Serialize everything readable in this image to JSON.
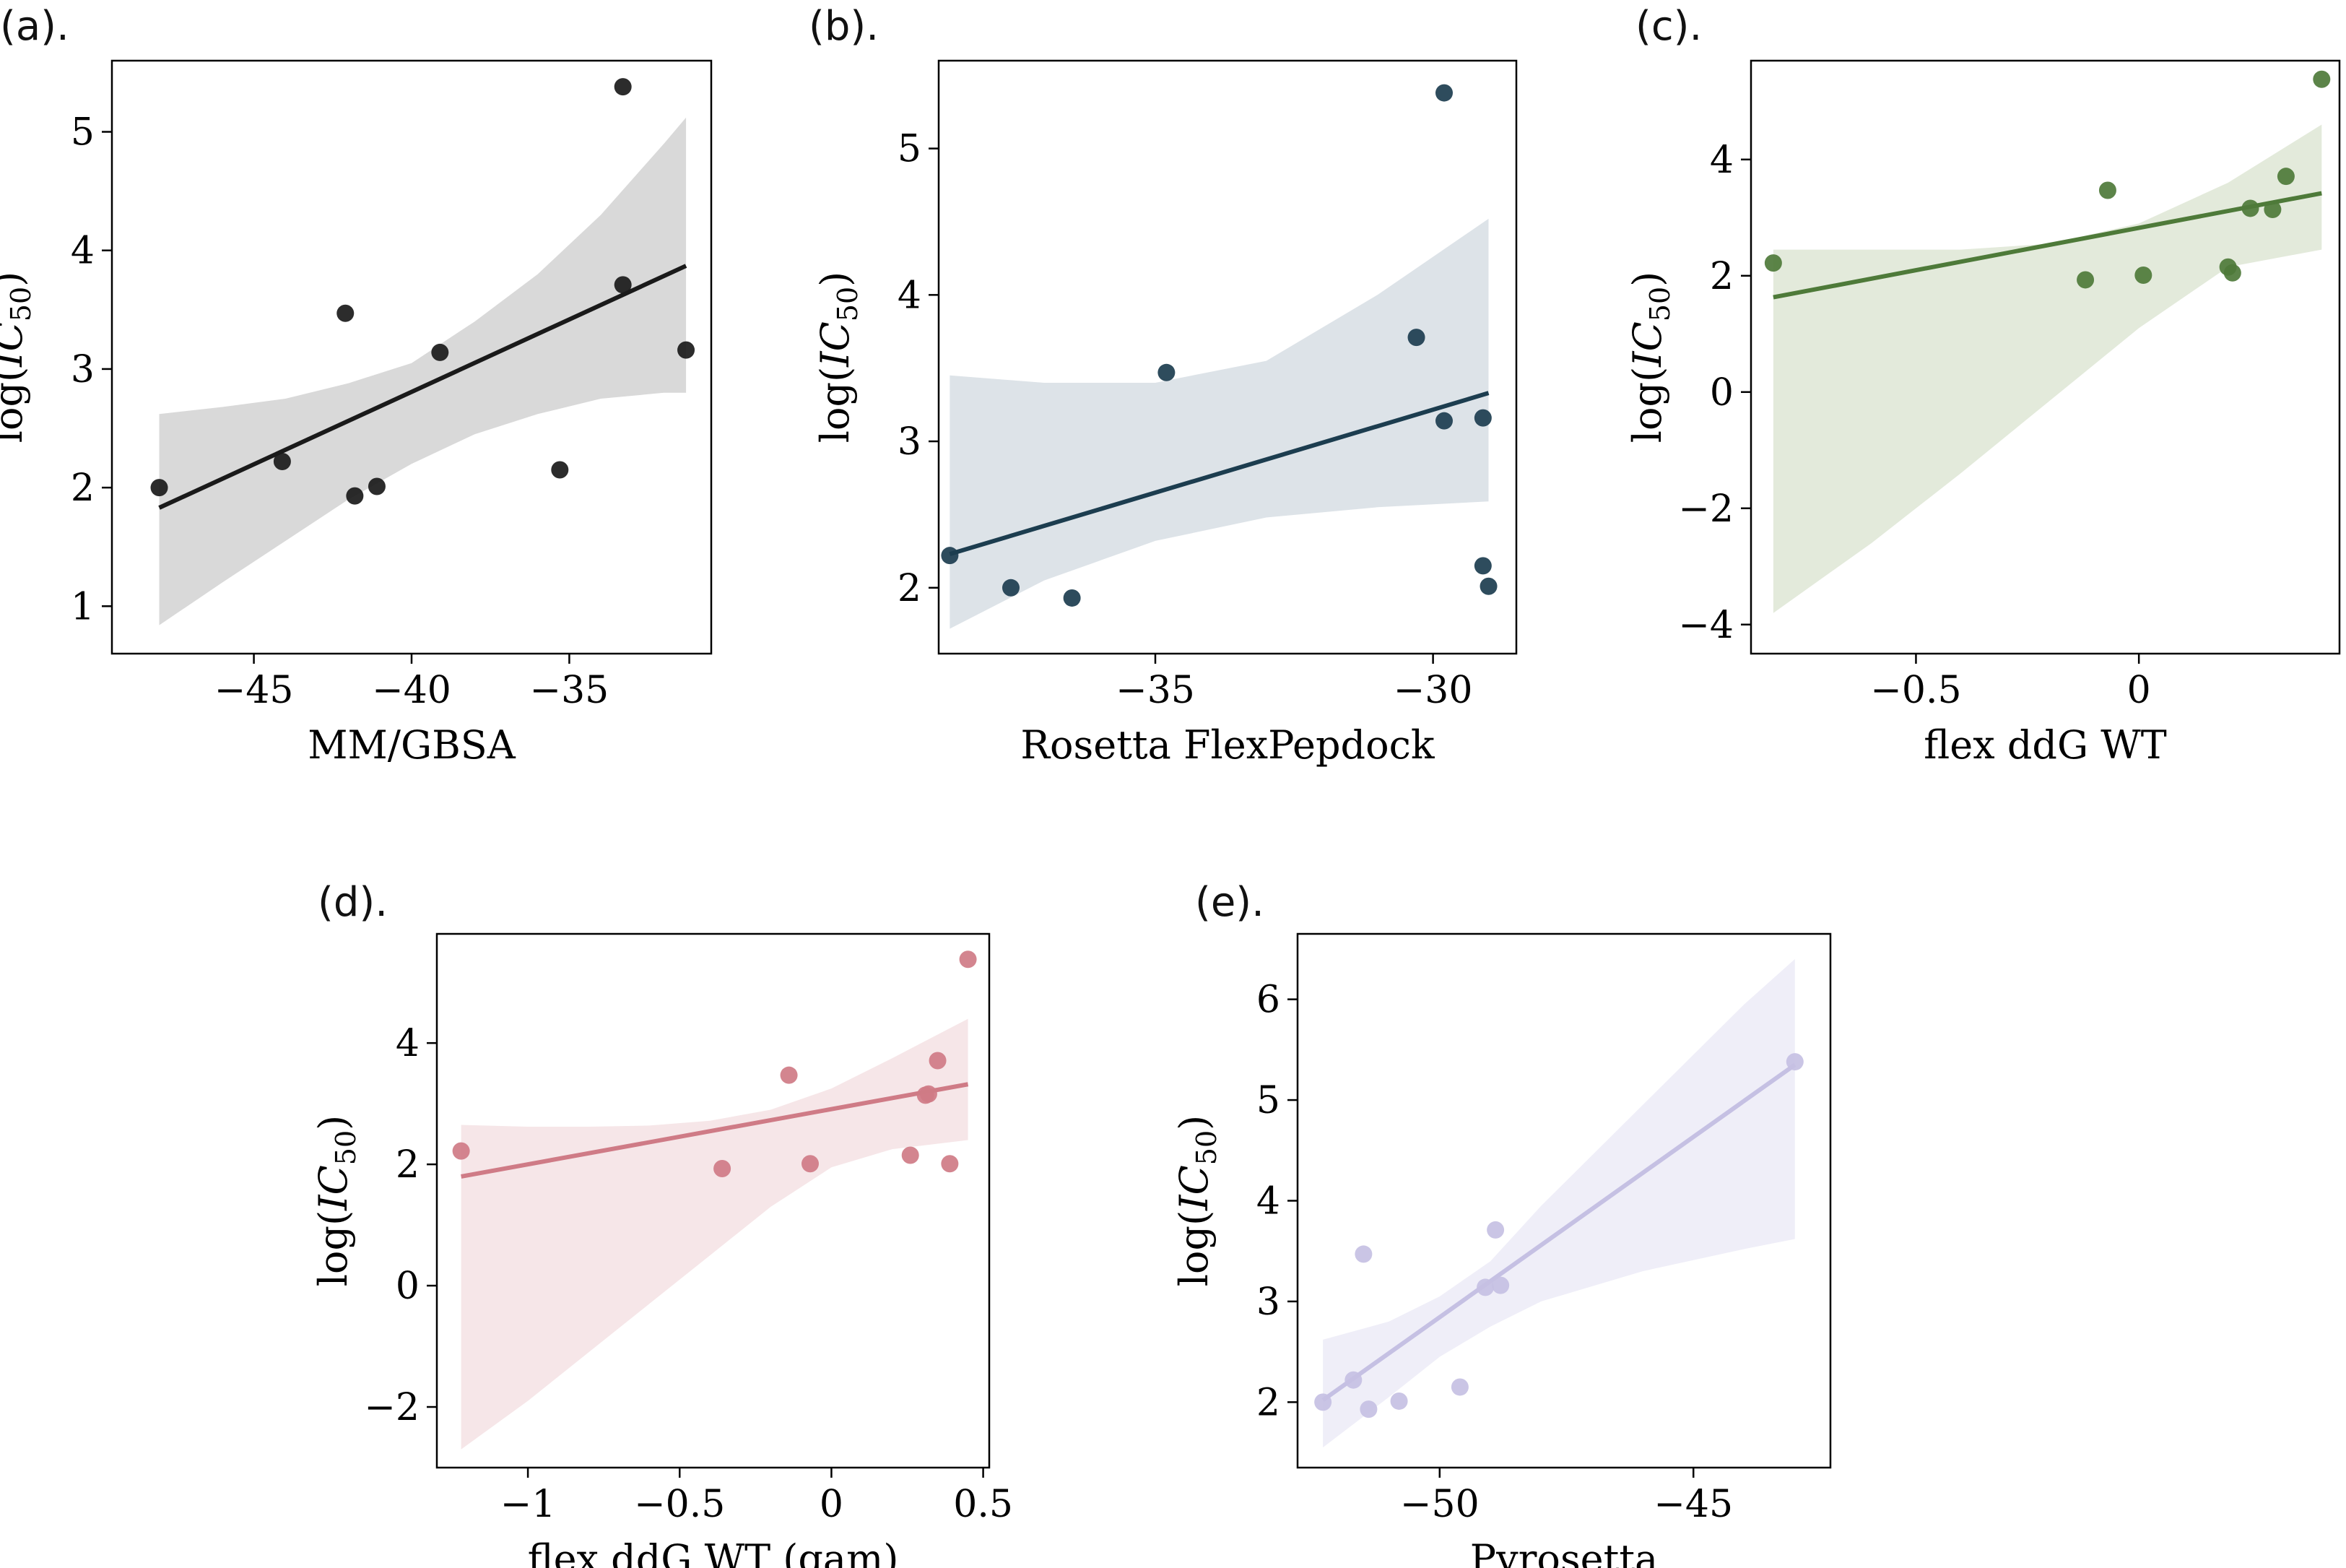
{
  "chart_data": [
    {
      "id": "a",
      "panel_label": "(a).",
      "type": "scatter",
      "xlabel": "MM/GBSA",
      "ylabel": "log(IC50)",
      "xlim": [
        -49.5,
        -30.5
      ],
      "ylim": [
        0.6,
        5.6
      ],
      "xticks": [
        -45,
        -40,
        -35
      ],
      "yticks": [
        1,
        2,
        3,
        4,
        5
      ],
      "color": "#1a1a1a",
      "band_color": "#d9d9d9",
      "x": [
        -48.0,
        -44.1,
        -42.1,
        -41.8,
        -41.1,
        -39.1,
        -35.3,
        -33.3,
        -33.3,
        -31.3
      ],
      "y": [
        2.0,
        2.22,
        3.47,
        1.93,
        2.01,
        3.14,
        2.15,
        5.38,
        3.71,
        3.16
      ],
      "fit": {
        "x": [
          -48.0,
          -31.3
        ],
        "y": [
          1.83,
          3.87
        ]
      },
      "band": {
        "x": [
          -48.0,
          -46.0,
          -44.0,
          -42.0,
          -40.0,
          -38.0,
          -36.0,
          -34.0,
          -32.0,
          -31.3
        ],
        "lower": [
          0.84,
          1.2,
          1.55,
          1.9,
          2.2,
          2.45,
          2.62,
          2.75,
          2.8,
          2.8
        ],
        "upper": [
          2.62,
          2.68,
          2.75,
          2.88,
          3.05,
          3.4,
          3.8,
          4.3,
          4.9,
          5.12
        ]
      }
    },
    {
      "id": "b",
      "panel_label": "(b).",
      "type": "scatter",
      "xlabel": "Rosetta FlexPepdock",
      "ylabel": "log(IC50)",
      "xlim": [
        -38.9,
        -28.5
      ],
      "ylim": [
        1.55,
        5.6
      ],
      "xticks": [
        -35,
        -30
      ],
      "yticks": [
        2,
        3,
        4,
        5
      ],
      "color": "#1c3d4f",
      "band_color": "#dde3e8",
      "x": [
        -38.7,
        -37.6,
        -36.5,
        -34.8,
        -30.3,
        -29.8,
        -29.8,
        -29.1,
        -29.1,
        -29.0
      ],
      "y": [
        2.22,
        2.0,
        1.93,
        3.47,
        3.71,
        5.38,
        3.14,
        3.16,
        2.15,
        2.01
      ],
      "fit": {
        "x": [
          -38.7,
          -29.0
        ],
        "y": [
          2.23,
          3.33
        ]
      },
      "band": {
        "x": [
          -38.7,
          -37.0,
          -35.0,
          -33.0,
          -31.0,
          -29.0
        ],
        "lower": [
          1.72,
          2.05,
          2.32,
          2.48,
          2.55,
          2.59
        ],
        "upper": [
          3.45,
          3.4,
          3.4,
          3.55,
          4.0,
          4.52
        ]
      }
    },
    {
      "id": "c",
      "panel_label": "(c).",
      "type": "scatter",
      "xlabel": "flex ddG WT",
      "ylabel": "log(IC50)",
      "xlim": [
        -0.87,
        0.45
      ],
      "ylim": [
        -4.5,
        5.7
      ],
      "xticks": [
        -0.5,
        0.0
      ],
      "yticks": [
        -4,
        -2,
        0,
        2,
        4
      ],
      "color": "#4e7a39",
      "band_color": "#e3eadb",
      "x": [
        -0.82,
        -0.12,
        -0.07,
        0.01,
        0.2,
        0.21,
        0.25,
        0.3,
        0.33,
        0.41
      ],
      "y": [
        2.22,
        1.93,
        3.47,
        2.01,
        2.15,
        2.05,
        3.16,
        3.14,
        3.71,
        5.38
      ],
      "fit": {
        "x": [
          -0.82,
          0.41
        ],
        "y": [
          1.63,
          3.42
        ]
      },
      "band": {
        "x": [
          -0.82,
          -0.6,
          -0.4,
          -0.2,
          0.0,
          0.2,
          0.41
        ],
        "lower": [
          -3.8,
          -2.6,
          -1.4,
          -0.15,
          1.1,
          2.15,
          2.45
        ],
        "upper": [
          2.45,
          2.45,
          2.45,
          2.55,
          2.9,
          3.6,
          4.6
        ]
      }
    },
    {
      "id": "d",
      "panel_label": "(d).",
      "type": "scatter",
      "xlabel": "flex ddG WT (gam)",
      "ylabel": "log(IC50)",
      "xlim": [
        -1.3,
        0.52
      ],
      "ylim": [
        -3.0,
        5.8
      ],
      "xticks": [
        -1.0,
        -0.5,
        0.0,
        0.5
      ],
      "yticks": [
        -2,
        0,
        2,
        4
      ],
      "color": "#cf7b86",
      "band_color": "#f6e6e8",
      "x": [
        -1.22,
        -0.36,
        -0.14,
        -0.07,
        0.26,
        0.31,
        0.32,
        0.35,
        0.39,
        0.45
      ],
      "y": [
        2.22,
        1.93,
        3.47,
        2.01,
        2.15,
        3.14,
        3.16,
        3.71,
        2.01,
        5.38
      ],
      "fit": {
        "x": [
          -1.22,
          0.45
        ],
        "y": [
          1.8,
          3.32
        ]
      },
      "band": {
        "x": [
          -1.22,
          -1.0,
          -0.8,
          -0.6,
          -0.4,
          -0.2,
          0.0,
          0.2,
          0.45
        ],
        "lower": [
          -2.7,
          -1.9,
          -1.1,
          -0.3,
          0.5,
          1.3,
          1.95,
          2.25,
          2.4
        ],
        "upper": [
          2.65,
          2.62,
          2.62,
          2.64,
          2.72,
          2.9,
          3.25,
          3.75,
          4.4
        ]
      }
    },
    {
      "id": "e",
      "panel_label": "(e).",
      "type": "scatter",
      "xlabel": "Pyrosetta",
      "ylabel": "log(IC50)",
      "xlim": [
        -52.8,
        -42.3
      ],
      "ylim": [
        1.35,
        6.65
      ],
      "xticks": [
        -50,
        -45
      ],
      "yticks": [
        2,
        3,
        4,
        5,
        6
      ],
      "color": "#c5c0e3",
      "band_color": "#efeef8",
      "x": [
        -52.3,
        -51.7,
        -51.5,
        -51.4,
        -50.8,
        -49.6,
        -49.1,
        -48.9,
        -48.8,
        -43.0
      ],
      "y": [
        2.0,
        2.22,
        3.47,
        1.93,
        2.01,
        2.15,
        3.14,
        3.71,
        3.16,
        5.38
      ],
      "fit": {
        "x": [
          -52.3,
          -43.0
        ],
        "y": [
          2.02,
          5.35
        ]
      },
      "band": {
        "x": [
          -52.3,
          -51.0,
          -50.0,
          -49.0,
          -48.0,
          -46.0,
          -44.0,
          -43.0
        ],
        "lower": [
          1.55,
          2.05,
          2.45,
          2.75,
          3.0,
          3.3,
          3.52,
          3.62
        ],
        "upper": [
          2.62,
          2.8,
          3.05,
          3.4,
          3.95,
          4.95,
          5.95,
          6.4
        ]
      }
    }
  ]
}
